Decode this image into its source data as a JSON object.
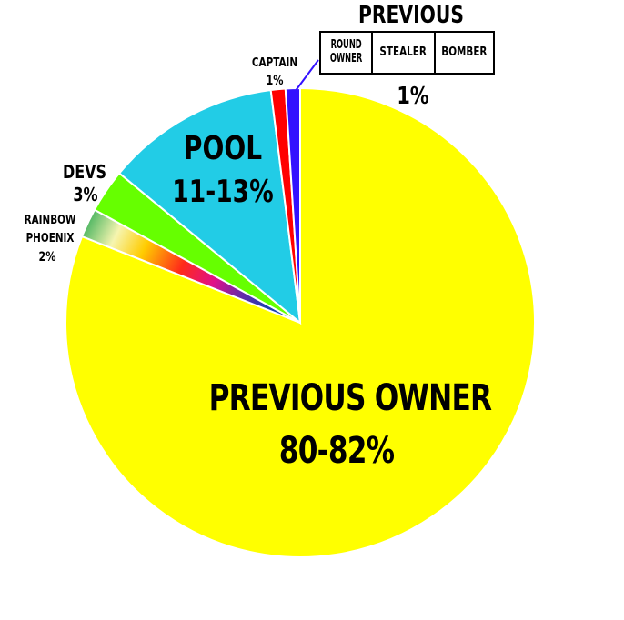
{
  "chart_data": {
    "type": "pie",
    "title": "",
    "slices": [
      {
        "label": "PREVIOUS OWNER",
        "value_text": "80-82%",
        "value": 81,
        "color": "#ffff00"
      },
      {
        "label": "RAINBOW PHOENIX",
        "value_text": "2%",
        "value": 2,
        "color": "rainbow"
      },
      {
        "label": "DEVS",
        "value_text": "3%",
        "value": 3,
        "color": "#66ff00"
      },
      {
        "label": "POOL",
        "value_text": "11-13%",
        "value": 12,
        "color": "#22cce6"
      },
      {
        "label": "CAPTAIN",
        "value_text": "1%",
        "value": 1,
        "color": "#ff0000"
      },
      {
        "label": "PREVIOUS",
        "value_text": "1%",
        "value": 1,
        "color": "#3311ff",
        "sub_labels": [
          "ROUND OWNER",
          "STEALER",
          "BOMBER"
        ]
      }
    ]
  },
  "labels": {
    "owner_name": "PREVIOUS OWNER",
    "owner_value": "80-82%",
    "pool_name": "POOL",
    "pool_value": "11-13%",
    "devs_name": "DEVS",
    "devs_value": "3%",
    "rainbow_line1": "RAINBOW",
    "rainbow_line2": "PHOENIX",
    "rainbow_value": "2%",
    "captain_name": "CAPTAIN",
    "captain_value": "1%",
    "previous_title": "PREVIOUS",
    "previous_value": "1%",
    "previous_box": {
      "round_owner_line1": "ROUND",
      "round_owner_line2": "OWNER",
      "stealer": "STEALER",
      "bomber": "BOMBER"
    }
  }
}
